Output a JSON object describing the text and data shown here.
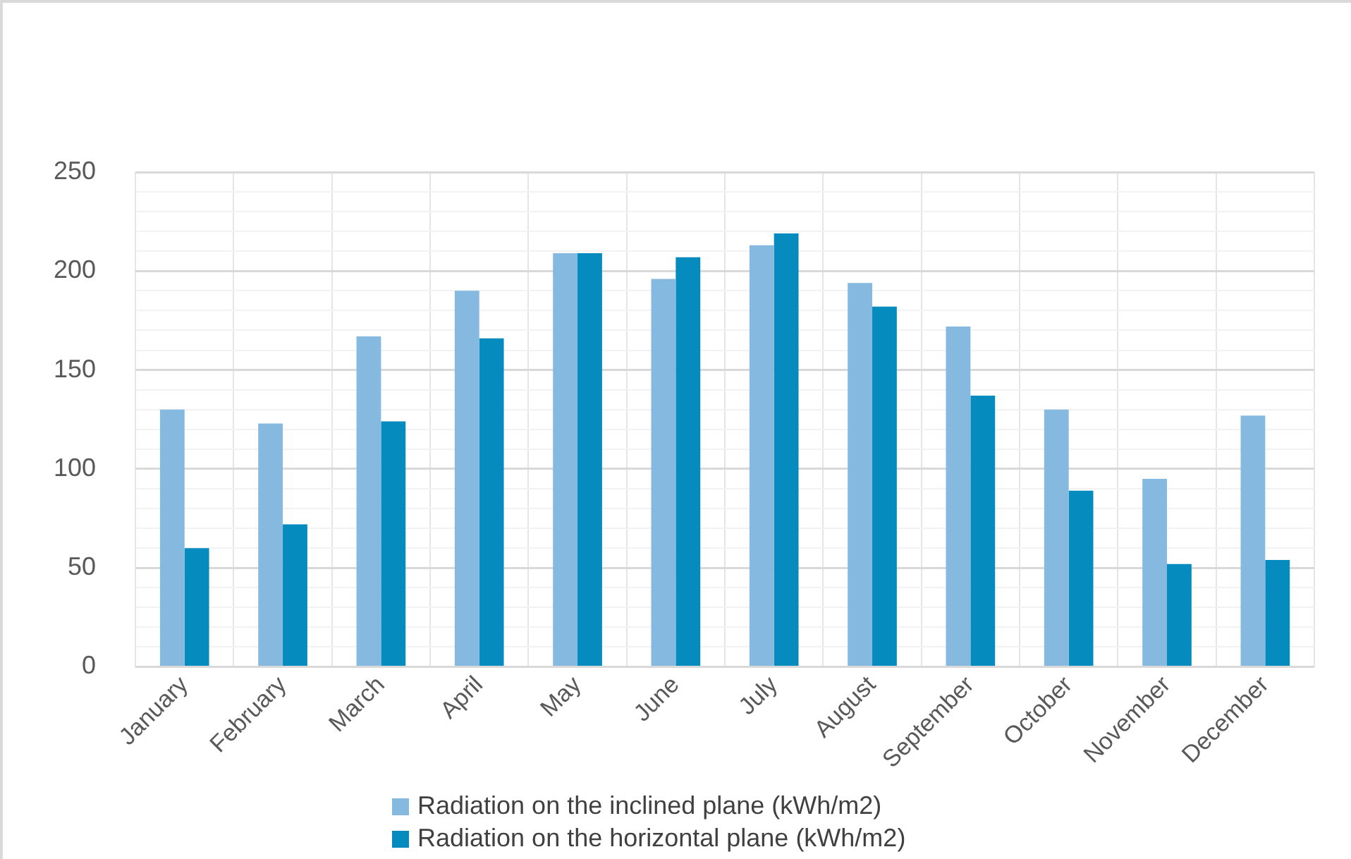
{
  "chart_data": {
    "type": "bar",
    "categories": [
      "January",
      "February",
      "March",
      "April",
      "May",
      "June",
      "July",
      "August",
      "September",
      "October",
      "November",
      "December"
    ],
    "series": [
      {
        "name": "Radiation on the inclined plane (kWh/m2)",
        "color": "#85b9e0",
        "values": [
          130,
          123,
          167,
          190,
          209,
          196,
          213,
          194,
          172,
          130,
          95,
          127
        ]
      },
      {
        "name": "Radiation on the horizontal plane (kWh/m2)",
        "color": "#068bbf",
        "values": [
          60,
          72,
          124,
          166,
          209,
          207,
          219,
          182,
          137,
          89,
          52,
          54
        ]
      }
    ],
    "ylim": [
      0,
      250
    ],
    "yticks": [
      0,
      {
        "value": 10,
        "label": null
      },
      {
        "value": 20,
        "label": null
      },
      {
        "value": 30,
        "label": null
      },
      {
        "value": 40,
        "label": null
      },
      50,
      {
        "value": 60,
        "label": null
      },
      {
        "value": 70,
        "label": null
      },
      {
        "value": 80,
        "label": null
      },
      {
        "value": 90,
        "label": null
      },
      100,
      {
        "value": 110,
        "label": null
      },
      {
        "value": 120,
        "label": null
      },
      {
        "value": 130,
        "label": null
      },
      {
        "value": 140,
        "label": null
      },
      150,
      {
        "value": 160,
        "label": null
      },
      {
        "value": 170,
        "label": null
      },
      {
        "value": 180,
        "label": null
      },
      {
        "value": 190,
        "label": null
      },
      200,
      {
        "value": 210,
        "label": null
      },
      {
        "value": 220,
        "label": null
      },
      {
        "value": 230,
        "label": null
      },
      {
        "value": 240,
        "label": null
      },
      250
    ],
    "grid": true,
    "legend": "bottom"
  }
}
